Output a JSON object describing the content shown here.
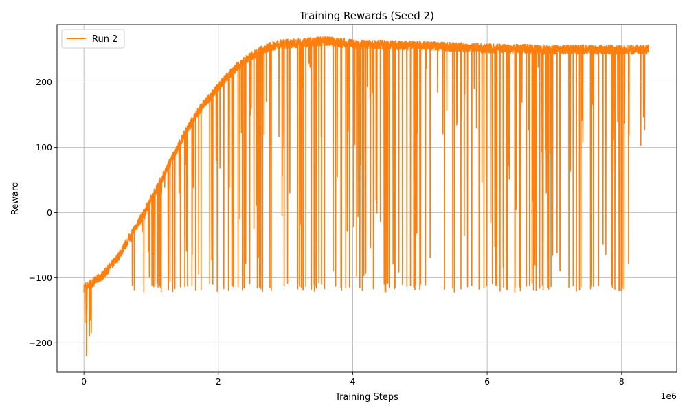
{
  "chart_data": {
    "type": "line",
    "title": "Training Rewards (Seed 2)",
    "xlabel": "Training Steps",
    "ylabel": "Reward",
    "x_offset_text": "1e6",
    "xlim": [
      -400000,
      8820000
    ],
    "ylim": [
      -245,
      288
    ],
    "xticks": [
      0,
      2000000,
      4000000,
      6000000,
      8000000
    ],
    "xtick_labels": [
      "0",
      "2",
      "4",
      "6",
      "8"
    ],
    "yticks": [
      -200,
      -100,
      0,
      100,
      200
    ],
    "ytick_labels": [
      "−200",
      "−100",
      "0",
      "100",
      "200"
    ],
    "grid": true,
    "legend_position": "upper-left",
    "series": [
      {
        "name": "Run 2",
        "color": "#ff7f0e",
        "x_start": 0,
        "x_end": 8400000,
        "mean_envelope": {
          "x": [
            0,
            100000,
            300000,
            500000,
            700000,
            900000,
            1100000,
            1300000,
            1500000,
            1700000,
            1900000,
            2100000,
            2300000,
            2500000,
            2700000,
            2900000,
            3200000,
            3600000,
            4000000,
            5000000,
            6000000,
            7000000,
            8000000,
            8400000
          ],
          "y": [
            -115,
            -110,
            -95,
            -70,
            -35,
            0,
            40,
            80,
            120,
            155,
            180,
            205,
            225,
            240,
            252,
            258,
            260,
            263,
            258,
            256,
            252,
            250,
            250,
            250
          ]
        },
        "floor_value": -115,
        "min_point": {
          "x": 40000,
          "y": -220
        },
        "dip_count": 300
      }
    ]
  }
}
